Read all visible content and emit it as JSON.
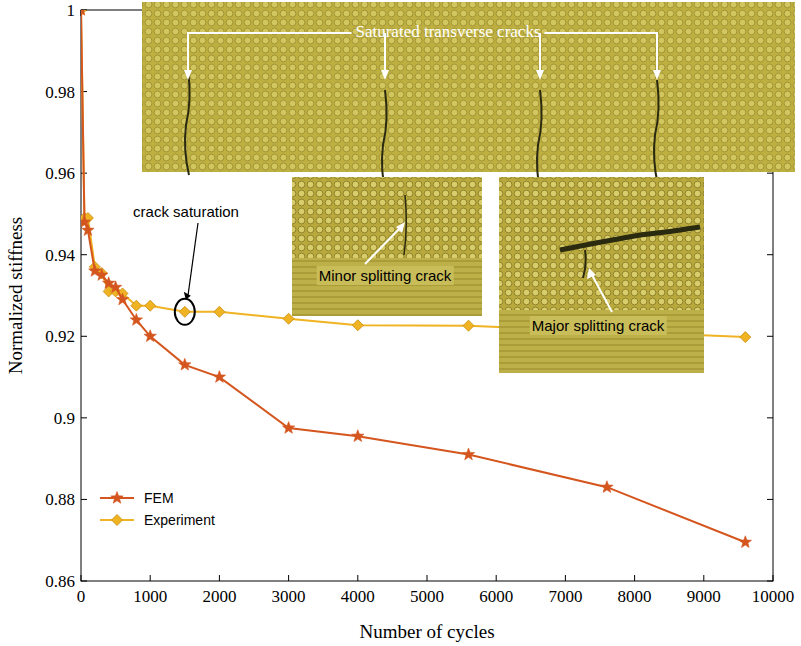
{
  "chart_data": {
    "type": "line",
    "x_label": "Number of cycles",
    "y_label": "Normalized stiffness",
    "xlim": [
      0,
      10000
    ],
    "ylim": [
      0.86,
      1
    ],
    "xticks": [
      0,
      1000,
      2000,
      3000,
      4000,
      5000,
      6000,
      7000,
      8000,
      9000,
      10000
    ],
    "yticks": [
      0.86,
      0.88,
      0.9,
      0.92,
      0.94,
      0.96,
      0.98,
      1
    ],
    "grid": false,
    "legend": "lower left",
    "series": [
      {
        "name": "FEM",
        "color": "#d4561e",
        "marker": "star",
        "line_style": "solid",
        "x": [
          0,
          50,
          100,
          200,
          300,
          400,
          500,
          600,
          800,
          1000,
          1500,
          2000,
          3000,
          4000,
          5600,
          7600,
          9600
        ],
        "values": [
          1,
          0.948,
          0.946,
          0.936,
          0.935,
          0.933,
          0.932,
          0.929,
          0.924,
          0.92,
          0.913,
          0.91,
          0.8975,
          0.8955,
          0.891,
          0.883,
          0.8695
        ]
      },
      {
        "name": "Experiment",
        "color": "#f0b323",
        "marker": "diamond",
        "line_style": "solid",
        "x": [
          0,
          50,
          100,
          200,
          300,
          400,
          500,
          600,
          800,
          1000,
          1500,
          2000,
          3000,
          4000,
          5600,
          9600
        ],
        "values": [
          1,
          0.949,
          0.949,
          0.937,
          0.9355,
          0.931,
          0.931,
          0.9305,
          0.9275,
          0.9275,
          0.926,
          0.926,
          0.9243,
          0.9227,
          0.9226,
          0.9198
        ]
      }
    ],
    "annotations": [
      "Saturated transverse cracks",
      "crack saturation",
      "Minor splitting crack",
      "Major splitting crack"
    ]
  }
}
